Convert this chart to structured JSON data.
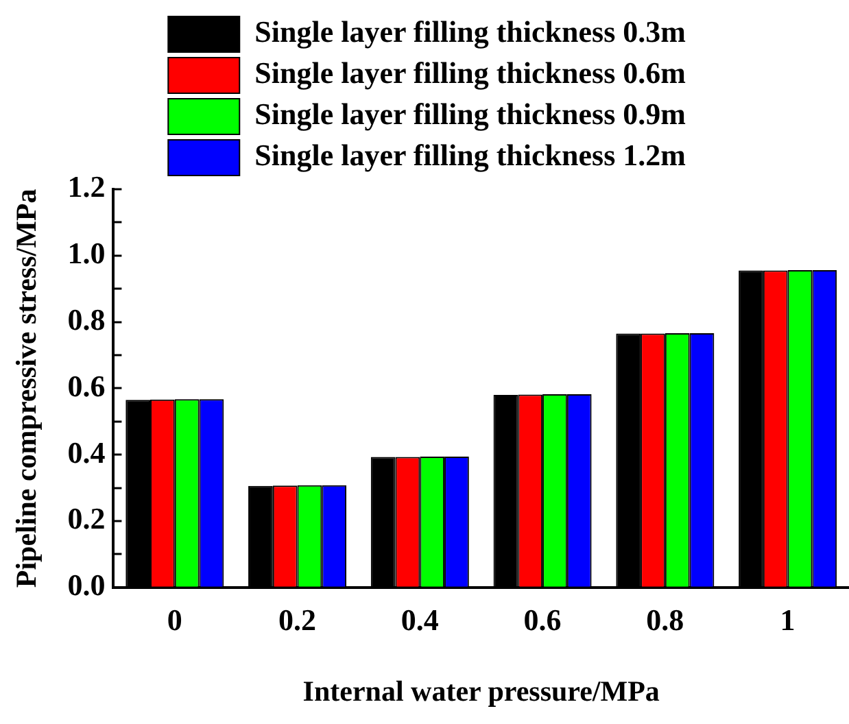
{
  "chart_data": {
    "type": "bar",
    "xlabel": "Internal water pressure/MPa",
    "ylabel": "Pipeline compressive stress/MPa",
    "categories": [
      "0",
      "0.2",
      "0.4",
      "0.6",
      "0.8",
      "1"
    ],
    "series": [
      {
        "name": "Single layer filling thickness 0.3m",
        "color": "#000000",
        "values": [
          0.565,
          0.306,
          0.393,
          0.58,
          0.765,
          0.955
        ]
      },
      {
        "name": "Single layer filling thickness 0.6m",
        "color": "#ff0000",
        "values": [
          0.566,
          0.307,
          0.393,
          0.581,
          0.765,
          0.955
        ]
      },
      {
        "name": "Single layer filling thickness 0.9m",
        "color": "#00ff00",
        "values": [
          0.567,
          0.308,
          0.394,
          0.582,
          0.766,
          0.956
        ]
      },
      {
        "name": "Single layer filling thickness 1.2m",
        "color": "#0000ff",
        "values": [
          0.567,
          0.308,
          0.394,
          0.582,
          0.766,
          0.956
        ]
      }
    ],
    "ylim": [
      0,
      1.2
    ],
    "yticks": [
      {
        "value": 0,
        "label": "0.0"
      },
      {
        "value": 0.1,
        "label": null
      },
      0.2,
      {
        "value": 0.3,
        "label": null
      },
      0.4,
      {
        "value": 0.5,
        "label": null
      },
      0.6,
      {
        "value": 0.7,
        "label": null
      },
      0.8,
      {
        "value": 0.9,
        "label": null
      },
      {
        "value": 1,
        "label": "1.0"
      },
      {
        "value": 1.1,
        "label": null
      },
      1.2
    ],
    "grid": false,
    "legend": "top"
  }
}
